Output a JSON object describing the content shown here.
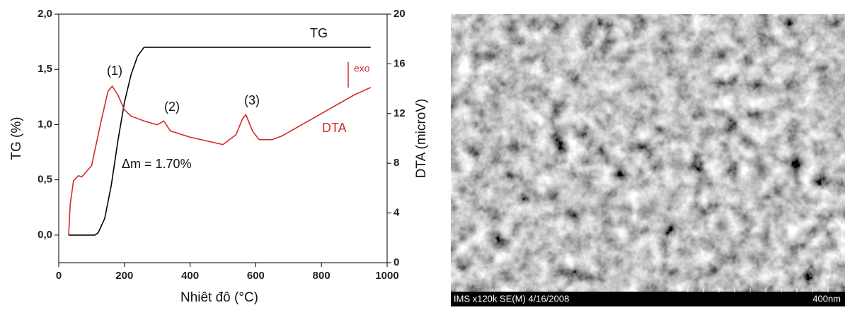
{
  "chart_data": {
    "type": "line",
    "xlabel": "Nhiêt đô (°C)",
    "ylabel": "TG (%)",
    "y2label": "DTA (microV)",
    "xlim": [
      0,
      1000
    ],
    "xticks": [
      0,
      200,
      400,
      600,
      800,
      1000
    ],
    "ylim": [
      -0.25,
      2.0
    ],
    "yticks": [
      {
        "value": 0,
        "label": "0,0"
      },
      {
        "value": 0.5,
        "label": "0,5"
      },
      {
        "value": 1.0,
        "label": "1,0"
      },
      {
        "value": 1.5,
        "label": "1,5"
      },
      {
        "value": 2.0,
        "label": "2,0"
      }
    ],
    "y2lim": [
      0,
      20
    ],
    "y2ticks": [
      0,
      4,
      8,
      12,
      16,
      20
    ],
    "series": [
      {
        "name": "TG",
        "color": "#000000",
        "x": [
          30,
          110,
          120,
          140,
          160,
          180,
          200,
          220,
          240,
          260,
          950
        ],
        "values": [
          0,
          0,
          0.02,
          0.15,
          0.45,
          0.85,
          1.2,
          1.45,
          1.62,
          1.7,
          1.7
        ]
      },
      {
        "name": "DTA",
        "color": "#d42a2a",
        "axis": "y2",
        "x": [
          30,
          35,
          45,
          60,
          70,
          100,
          130,
          150,
          163,
          180,
          200,
          220,
          260,
          300,
          320,
          340,
          400,
          450,
          500,
          540,
          560,
          570,
          590,
          610,
          650,
          680,
          700,
          800,
          900,
          950
        ],
        "values": [
          2.2,
          4.7,
          6.6,
          7.0,
          6.9,
          7.8,
          11.5,
          13.8,
          14.2,
          13.5,
          12.3,
          11.8,
          11.4,
          11.1,
          11.4,
          10.6,
          10.1,
          9.8,
          9.5,
          10.3,
          11.6,
          11.9,
          10.6,
          9.9,
          9.9,
          10.2,
          10.5,
          12.0,
          13.5,
          14.1
        ]
      }
    ],
    "annotations": [
      "(1)",
      "(2)",
      "(3)",
      "exo",
      "Δm = 1.70%"
    ]
  },
  "image": {
    "caption": "IMS x120k SE(M) 4/16/2008",
    "scale": "400nm"
  }
}
